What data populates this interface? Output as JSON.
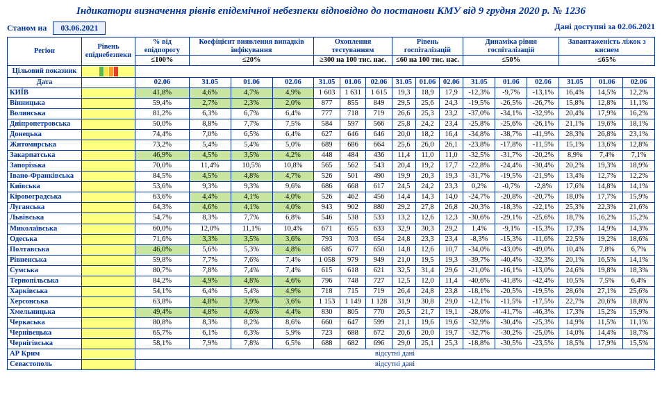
{
  "title": "Індикатори визначення рівнів епідемічної небезпеки відповідно до постанови КМУ від 9 грудня 2020 р. № 1236",
  "asof_label": "Станом на",
  "asof_date": "03.06.2021",
  "avail_label": "Дані доступні за",
  "avail_date": "02.06.2021",
  "head": {
    "region": "Регіон",
    "risk": "Рівень епіднебезпеки",
    "pct": "% від епідпорогу",
    "coef": "Коефіцієнт виявлення випадків інфікування",
    "test": "Охоплення тестуванням",
    "hosp": "Рівень госпіталізацій",
    "dyn": "Динаміка рівня госпіталізацій",
    "beds": "Завантаженість ліжок з киснем",
    "target": "Цільовий показник",
    "date": "Дата",
    "t_pct": "≤100%",
    "t_coef": "≤20%",
    "t_test": "≥300 на 100 тис. нас.",
    "t_hosp": "≤60 на 100 тис. нас.",
    "t_dyn": "≤50%",
    "t_beds": "≤65%"
  },
  "dates": {
    "d0": "02.06",
    "a": "31.05",
    "b": "01.06",
    "c": "02.06"
  },
  "absent": "відсутні дані",
  "rows": [
    {
      "region": "КИЇВ",
      "pct": "41,8%",
      "pct_hl": 1,
      "coef": [
        "4,6%",
        "4,7%",
        "4,9%"
      ],
      "coef_hl": [
        1,
        1,
        1
      ],
      "test": [
        "1 603",
        "1 631",
        "1 615"
      ],
      "hosp": [
        "19,3",
        "18,9",
        "17,9"
      ],
      "dyn": [
        "-12,3%",
        "-9,7%",
        "-13,1%"
      ],
      "beds": [
        "16,4%",
        "14,5%",
        "12,2%"
      ]
    },
    {
      "region": "Вінницька",
      "pct": "59,4%",
      "coef": [
        "2,7%",
        "2,3%",
        "2,0%"
      ],
      "coef_hl": [
        1,
        1,
        1
      ],
      "test": [
        "877",
        "855",
        "849"
      ],
      "hosp": [
        "29,5",
        "25,6",
        "24,3"
      ],
      "dyn": [
        "-19,5%",
        "-26,5%",
        "-26,7%"
      ],
      "beds": [
        "15,8%",
        "12,8%",
        "11,1%"
      ]
    },
    {
      "region": "Волинська",
      "pct": "81,2%",
      "coef": [
        "6,3%",
        "6,7%",
        "6,4%"
      ],
      "test": [
        "777",
        "718",
        "719"
      ],
      "hosp": [
        "26,6",
        "25,3",
        "23,2"
      ],
      "dyn": [
        "-37,0%",
        "-34,1%",
        "-32,9%"
      ],
      "beds": [
        "20,4%",
        "17,9%",
        "16,2%"
      ]
    },
    {
      "region": "Дніпропетровська",
      "pct": "50,0%",
      "coef": [
        "8,8%",
        "7,7%",
        "7,5%"
      ],
      "test": [
        "584",
        "597",
        "566"
      ],
      "hosp": [
        "25,8",
        "24,2",
        "23,4"
      ],
      "dyn": [
        "-25,8%",
        "-25,6%",
        "-26,1%"
      ],
      "beds": [
        "21,1%",
        "19,6%",
        "18,1%"
      ]
    },
    {
      "region": "Донецька",
      "pct": "74,4%",
      "coef": [
        "7,0%",
        "6,5%",
        "6,4%"
      ],
      "test": [
        "627",
        "646",
        "646"
      ],
      "hosp": [
        "20,0",
        "18,2",
        "16,4"
      ],
      "dyn": [
        "-34,8%",
        "-38,7%",
        "-41,9%"
      ],
      "beds": [
        "28,3%",
        "26,8%",
        "23,1%"
      ]
    },
    {
      "region": "Житомирська",
      "pct": "73,2%",
      "coef": [
        "5,4%",
        "5,4%",
        "5,0%"
      ],
      "test": [
        "689",
        "686",
        "664"
      ],
      "hosp": [
        "25,6",
        "26,0",
        "26,1"
      ],
      "dyn": [
        "-23,8%",
        "-17,8%",
        "-11,5%"
      ],
      "beds": [
        "15,1%",
        "13,6%",
        "12,8%"
      ]
    },
    {
      "region": "Закарпатська",
      "pct": "46,9%",
      "pct_hl": 1,
      "coef": [
        "4,5%",
        "3,5%",
        "4,2%"
      ],
      "coef_hl": [
        1,
        1,
        1
      ],
      "test": [
        "448",
        "484",
        "436"
      ],
      "hosp": [
        "11,4",
        "11,0",
        "11,0"
      ],
      "dyn": [
        "-32,5%",
        "-31,7%",
        "-20,2%"
      ],
      "beds": [
        "8,9%",
        "7,4%",
        "7,1%"
      ]
    },
    {
      "region": "Запорізька",
      "pct": "70,0%",
      "coef": [
        "11,4%",
        "10,5%",
        "10,8%"
      ],
      "test": [
        "565",
        "562",
        "543"
      ],
      "hosp": [
        "20,4",
        "19,2",
        "17,7"
      ],
      "dyn": [
        "-22,8%",
        "-24,4%",
        "-30,4%"
      ],
      "beds": [
        "20,2%",
        "19,3%",
        "18,9%"
      ]
    },
    {
      "region": "Івано-Франківська",
      "pct": "84,5%",
      "coef": [
        "4,5%",
        "4,8%",
        "4,7%"
      ],
      "coef_hl": [
        1,
        1,
        1
      ],
      "test": [
        "526",
        "501",
        "490"
      ],
      "hosp": [
        "19,9",
        "20,3",
        "19,3"
      ],
      "dyn": [
        "-31,7%",
        "-19,5%",
        "-21,9%"
      ],
      "beds": [
        "13,4%",
        "12,7%",
        "12,2%"
      ]
    },
    {
      "region": "Київська",
      "pct": "53,6%",
      "coef": [
        "9,3%",
        "9,3%",
        "9,6%"
      ],
      "test": [
        "686",
        "668",
        "617"
      ],
      "hosp": [
        "24,5",
        "24,2",
        "23,3"
      ],
      "dyn": [
        "0,2%",
        "-0,7%",
        "-2,8%"
      ],
      "beds": [
        "17,6%",
        "14,8%",
        "14,1%"
      ]
    },
    {
      "region": "Кіровоградська",
      "pct": "63,6%",
      "coef": [
        "4,4%",
        "4,1%",
        "4,0%"
      ],
      "coef_hl": [
        1,
        1,
        1
      ],
      "test": [
        "526",
        "462",
        "456"
      ],
      "hosp": [
        "14,4",
        "14,3",
        "14,0"
      ],
      "dyn": [
        "-24,7%",
        "-20,8%",
        "-20,7%"
      ],
      "beds": [
        "18,0%",
        "17,7%",
        "15,9%"
      ]
    },
    {
      "region": "Луганська",
      "pct": "64,3%",
      "coef": [
        "4,6%",
        "4,1%",
        "4,0%"
      ],
      "coef_hl": [
        1,
        1,
        1
      ],
      "test": [
        "943",
        "902",
        "880"
      ],
      "hosp": [
        "29,2",
        "27,8",
        "26,8"
      ],
      "dyn": [
        "-20,3%",
        "-18,3%",
        "-22,1%"
      ],
      "beds": [
        "25,3%",
        "22,3%",
        "21,6%"
      ]
    },
    {
      "region": "Львівська",
      "pct": "54,7%",
      "coef": [
        "8,3%",
        "7,7%",
        "6,8%"
      ],
      "test": [
        "546",
        "538",
        "533"
      ],
      "hosp": [
        "13,2",
        "12,6",
        "12,3"
      ],
      "dyn": [
        "-30,6%",
        "-29,1%",
        "-25,6%"
      ],
      "beds": [
        "18,7%",
        "16,2%",
        "15,2%"
      ]
    },
    {
      "region": "Миколаївська",
      "pct": "60,0%",
      "coef": [
        "12,0%",
        "11,1%",
        "10,4%"
      ],
      "test": [
        "671",
        "655",
        "633"
      ],
      "hosp": [
        "32,9",
        "30,3",
        "29,2"
      ],
      "dyn": [
        "1,4%",
        "-9,1%",
        "-15,3%"
      ],
      "beds": [
        "17,3%",
        "14,9%",
        "14,3%"
      ]
    },
    {
      "region": "Одеська",
      "pct": "71,6%",
      "coef": [
        "3,3%",
        "3,5%",
        "3,6%"
      ],
      "coef_hl": [
        1,
        1,
        1
      ],
      "test": [
        "793",
        "703",
        "654"
      ],
      "hosp": [
        "24,8",
        "23,3",
        "23,4"
      ],
      "dyn": [
        "-8,3%",
        "-15,3%",
        "-11,6%"
      ],
      "beds": [
        "22,5%",
        "19,2%",
        "18,6%"
      ]
    },
    {
      "region": "Полтавська",
      "pct": "46,0%",
      "pct_hl": 1,
      "coef": [
        "5,6%",
        "5,3%",
        "4,8%"
      ],
      "coef_hl": [
        0,
        0,
        1
      ],
      "test": [
        "685",
        "677",
        "650"
      ],
      "hosp": [
        "14,8",
        "12,6",
        "10,7"
      ],
      "dyn": [
        "-34,0%",
        "-43,0%",
        "-49,0%"
      ],
      "beds": [
        "10,4%",
        "7,8%",
        "6,7%"
      ]
    },
    {
      "region": "Рівненська",
      "pct": "59,8%",
      "coef": [
        "7,7%",
        "7,6%",
        "7,4%"
      ],
      "test": [
        "1 058",
        "979",
        "949"
      ],
      "hosp": [
        "21,0",
        "19,5",
        "19,3"
      ],
      "dyn": [
        "-39,7%",
        "-40,4%",
        "-32,3%"
      ],
      "beds": [
        "20,1%",
        "16,5%",
        "14,1%"
      ]
    },
    {
      "region": "Сумська",
      "pct": "80,7%",
      "coef": [
        "7,8%",
        "7,4%",
        "7,4%"
      ],
      "test": [
        "615",
        "618",
        "621"
      ],
      "hosp": [
        "32,5",
        "31,4",
        "29,6"
      ],
      "dyn": [
        "-21,0%",
        "-16,1%",
        "-13,0%"
      ],
      "beds": [
        "24,6%",
        "19,8%",
        "18,3%"
      ]
    },
    {
      "region": "Тернопільська",
      "pct": "84,2%",
      "coef": [
        "4,9%",
        "4,8%",
        "4,6%"
      ],
      "coef_hl": [
        1,
        1,
        1
      ],
      "test": [
        "796",
        "748",
        "727"
      ],
      "hosp": [
        "12,5",
        "12,0",
        "11,4"
      ],
      "dyn": [
        "-40,6%",
        "-41,8%",
        "-42,4%"
      ],
      "beds": [
        "10,5%",
        "7,5%",
        "6,4%"
      ]
    },
    {
      "region": "Харківська",
      "pct": "54,1%",
      "coef": [
        "6,4%",
        "5,4%",
        "4,9%"
      ],
      "coef_hl": [
        0,
        0,
        1
      ],
      "test": [
        "718",
        "715",
        "719"
      ],
      "hosp": [
        "26,4",
        "24,8",
        "23,8"
      ],
      "dyn": [
        "-18,1%",
        "-20,5%",
        "-19,5%"
      ],
      "beds": [
        "28,6%",
        "27,1%",
        "25,6%"
      ]
    },
    {
      "region": "Херсонська",
      "pct": "63,8%",
      "coef": [
        "4,8%",
        "3,9%",
        "3,6%"
      ],
      "coef_hl": [
        1,
        1,
        1
      ],
      "test": [
        "1 153",
        "1 149",
        "1 128"
      ],
      "hosp": [
        "31,9",
        "30,8",
        "29,0"
      ],
      "dyn": [
        "-12,1%",
        "-11,5%",
        "-17,5%"
      ],
      "beds": [
        "22,7%",
        "20,6%",
        "18,8%"
      ]
    },
    {
      "region": "Хмельницька",
      "pct": "49,4%",
      "pct_hl": 1,
      "coef": [
        "4,8%",
        "4,6%",
        "4,4%"
      ],
      "coef_hl": [
        1,
        1,
        1
      ],
      "test": [
        "830",
        "805",
        "770"
      ],
      "hosp": [
        "26,5",
        "21,7",
        "19,1"
      ],
      "dyn": [
        "-28,0%",
        "-41,7%",
        "-46,3%"
      ],
      "beds": [
        "17,3%",
        "15,2%",
        "15,9%"
      ]
    },
    {
      "region": "Черкаська",
      "pct": "80,8%",
      "coef": [
        "8,3%",
        "8,2%",
        "8,6%"
      ],
      "test": [
        "660",
        "647",
        "599"
      ],
      "hosp": [
        "21,1",
        "19,6",
        "19,6"
      ],
      "dyn": [
        "-32,9%",
        "-30,4%",
        "-25,3%"
      ],
      "beds": [
        "14,9%",
        "11,5%",
        "11,1%"
      ]
    },
    {
      "region": "Чернівецька",
      "pct": "65,7%",
      "coef": [
        "6,1%",
        "6,3%",
        "5,9%"
      ],
      "test": [
        "723",
        "688",
        "672"
      ],
      "hosp": [
        "20,6",
        "20,0",
        "19,7"
      ],
      "dyn": [
        "-32,7%",
        "-30,2%",
        "-25,0%"
      ],
      "beds": [
        "14,0%",
        "14,4%",
        "18,7%"
      ]
    },
    {
      "region": "Чернігівська",
      "pct": "58,1%",
      "coef": [
        "7,9%",
        "7,8%",
        "6,5%"
      ],
      "test": [
        "688",
        "682",
        "696"
      ],
      "hosp": [
        "29,0",
        "25,1",
        "25,3"
      ],
      "dyn": [
        "-18,8%",
        "-30,5%",
        "-23,5%"
      ],
      "beds": [
        "18,5%",
        "17,9%",
        "15,5%"
      ]
    }
  ],
  "absent_rows": [
    "АР Крим",
    "Севастополь"
  ]
}
